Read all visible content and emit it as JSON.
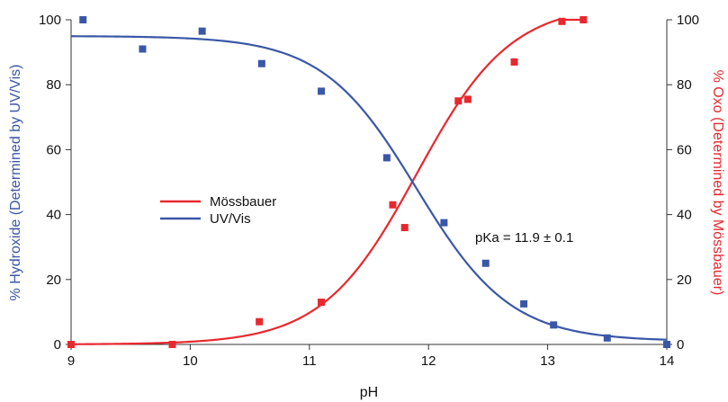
{
  "chart_data": {
    "type": "scatter",
    "title": "",
    "xlabel": "pH",
    "ylabel_left": "% Hydroxide (Determined by UV/Vis)",
    "ylabel_right": "% Oxo (Determined by Mössbauer)",
    "xlim": [
      9,
      14
    ],
    "ylim": [
      0,
      100
    ],
    "xticks": [
      9,
      10,
      11,
      12,
      13,
      14
    ],
    "yticks": [
      0,
      20,
      40,
      60,
      80,
      100
    ],
    "grid": false,
    "legend_position": "center-left",
    "annotation": "pKa = 11.9 ± 0.1",
    "series": [
      {
        "name": "Mössbauer",
        "color": "#e8282e",
        "axis": "right",
        "points": [
          [
            9.0,
            0
          ],
          [
            9.85,
            0
          ],
          [
            10.58,
            7
          ],
          [
            11.1,
            13
          ],
          [
            11.7,
            43
          ],
          [
            11.8,
            36
          ],
          [
            12.25,
            75
          ],
          [
            12.33,
            75.5
          ],
          [
            12.72,
            87
          ],
          [
            13.12,
            99.5
          ],
          [
            13.3,
            100
          ]
        ],
        "fit": {
          "pKa": 11.9,
          "bottom": 0,
          "top": 105,
          "slope": 1.1,
          "x_range": [
            9,
            13.3
          ]
        }
      },
      {
        "name": "UV/Vis",
        "color": "#3a57a7",
        "axis": "left",
        "points": [
          [
            9.1,
            100
          ],
          [
            9.6,
            91
          ],
          [
            10.1,
            96.5
          ],
          [
            10.6,
            86.5
          ],
          [
            11.1,
            78
          ],
          [
            11.65,
            57.5
          ],
          [
            12.13,
            37.5
          ],
          [
            12.48,
            25
          ],
          [
            12.8,
            12.5
          ],
          [
            13.05,
            6
          ],
          [
            13.5,
            2
          ],
          [
            14.0,
            0
          ]
        ],
        "fit": {
          "pKa": 11.9,
          "bottom": 1,
          "top": 95,
          "slope": 1.1,
          "x_range": [
            9,
            14
          ]
        }
      }
    ]
  }
}
